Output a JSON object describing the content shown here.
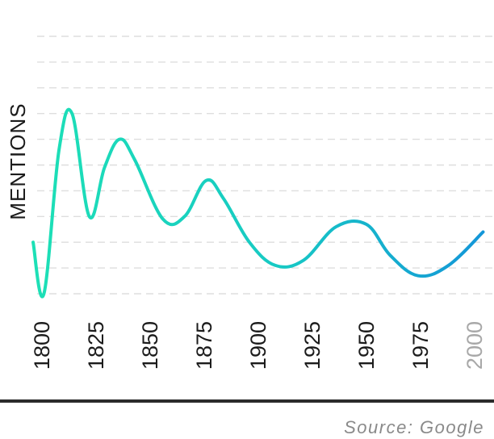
{
  "chart_data": {
    "type": "line",
    "title": "",
    "xlabel": "",
    "ylabel": "MENTIONS",
    "source": "Source: Google",
    "x_ticks": [
      "1800",
      "1825",
      "1850",
      "1875",
      "1900",
      "1925",
      "1950",
      "1975",
      "2000"
    ],
    "xlim": [
      1800,
      2008
    ],
    "ylim": [
      0,
      10
    ],
    "grid": true,
    "y_ticks_shown": false,
    "colors": {
      "line_start": "#1de0b6",
      "line_end": "#1496d8",
      "grid": "#dedede",
      "baseline": "#2b2b2b",
      "muted_tick": "#a8a8a8"
    },
    "series": [
      {
        "values": [
          [
            1800,
            2.0
          ],
          [
            1805,
            0.0
          ],
          [
            1812,
            5.6
          ],
          [
            1818,
            7.0
          ],
          [
            1826,
            3.0
          ],
          [
            1833,
            4.9
          ],
          [
            1840,
            6.0
          ],
          [
            1847,
            5.2
          ],
          [
            1860,
            2.9
          ],
          [
            1870,
            3.0
          ],
          [
            1880,
            4.4
          ],
          [
            1888,
            3.7
          ],
          [
            1900,
            2.0
          ],
          [
            1912,
            1.1
          ],
          [
            1925,
            1.3
          ],
          [
            1940,
            2.6
          ],
          [
            1954,
            2.7
          ],
          [
            1965,
            1.5
          ],
          [
            1978,
            0.7
          ],
          [
            1992,
            1.1
          ],
          [
            2008,
            2.4
          ]
        ]
      }
    ]
  }
}
